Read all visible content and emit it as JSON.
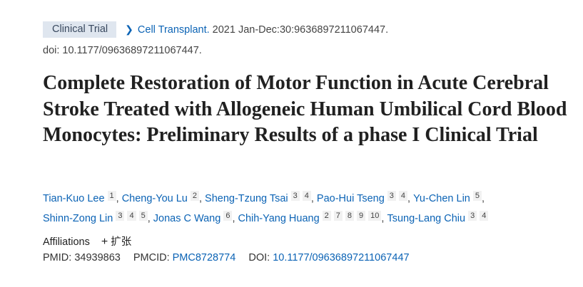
{
  "badge": "Clinical Trial",
  "journal": "Cell Transplant.",
  "citation": "2021 Jan-Dec:30:9636897211067447.",
  "doi_line": "doi: 10.1177/09636897211067447.",
  "title": "Complete Restoration of Motor Function in Acute Cerebral Stroke Treated with Allogeneic Human Umbilical Cord Blood Monocytes: Preliminary Results of a phase I Clinical Trial",
  "authors": [
    {
      "name": "Tian-Kuo Lee",
      "affs": [
        "1"
      ]
    },
    {
      "name": "Cheng-You Lu",
      "affs": [
        "2"
      ]
    },
    {
      "name": "Sheng-Tzung Tsai",
      "affs": [
        "3",
        "4"
      ]
    },
    {
      "name": "Pao-Hui Tseng",
      "affs": [
        "3",
        "4"
      ]
    },
    {
      "name": "Yu-Chen Lin",
      "affs": [
        "5"
      ]
    },
    {
      "name": "Shinn-Zong Lin",
      "affs": [
        "3",
        "4",
        "5"
      ]
    },
    {
      "name": "Jonas C Wang",
      "affs": [
        "6"
      ]
    },
    {
      "name": "Chih-Yang Huang",
      "affs": [
        "2",
        "7",
        "8",
        "9",
        "10"
      ]
    },
    {
      "name": "Tsung-Lang Chiu",
      "affs": [
        "3",
        "4"
      ]
    }
  ],
  "affiliations": {
    "label": "Affiliations",
    "expand": "扩张"
  },
  "ids": {
    "pmid_label": "PMID:",
    "pmid": "34939863",
    "pmcid_label": "PMCID:",
    "pmcid": "PMC8728774",
    "doi_label": "DOI:",
    "doi": "10.1177/09636897211067447"
  }
}
